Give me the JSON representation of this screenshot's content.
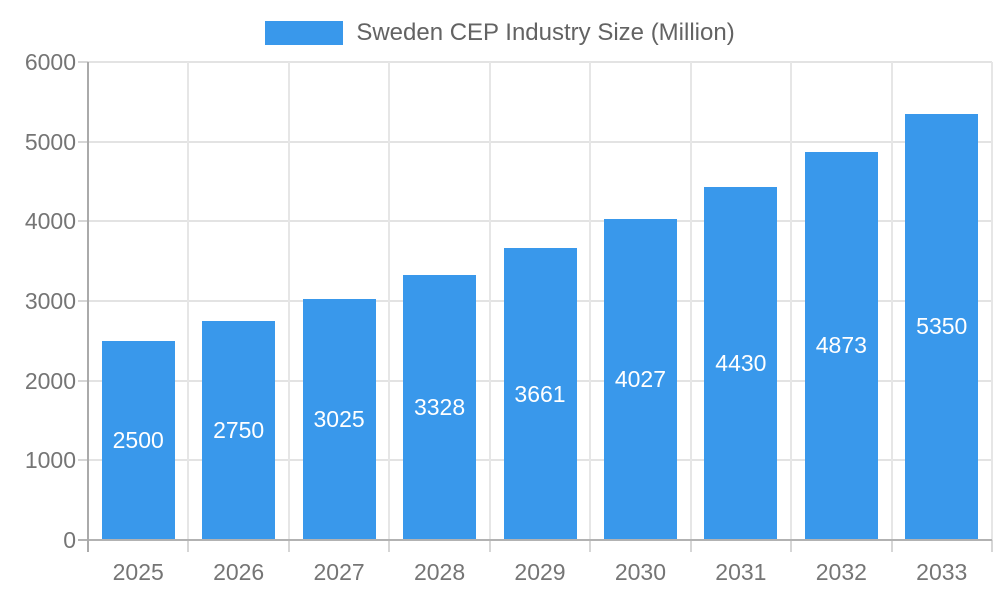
{
  "legend": {
    "label": "Sweden CEP Industry Size (Million)"
  },
  "colors": {
    "bar": "#3998eb",
    "value_label": "#ffffff",
    "axis_line": "#aaaaaa",
    "gridline": "#e3e3e3",
    "tick_label": "#757575",
    "legend_text": "#636363",
    "background": "#ffffff"
  },
  "chart_data": {
    "type": "bar",
    "title": "Sweden CEP Industry Size (Million)",
    "categories": [
      "2025",
      "2026",
      "2027",
      "2028",
      "2029",
      "2030",
      "2031",
      "2032",
      "2033"
    ],
    "values": [
      2500,
      2750,
      3025,
      3328,
      3661,
      4027,
      4430,
      4873,
      5350
    ],
    "series_name": "Sweden CEP Industry Size (Million)",
    "xlabel": "",
    "ylabel": "",
    "ylim": [
      0,
      6000
    ],
    "ytick_step": 1000,
    "ytick_labels": [
      "0",
      "1000",
      "2000",
      "3000",
      "4000",
      "5000",
      "6000"
    ],
    "grid": "on",
    "legend_position": "top",
    "value_labels": "inside-center"
  }
}
